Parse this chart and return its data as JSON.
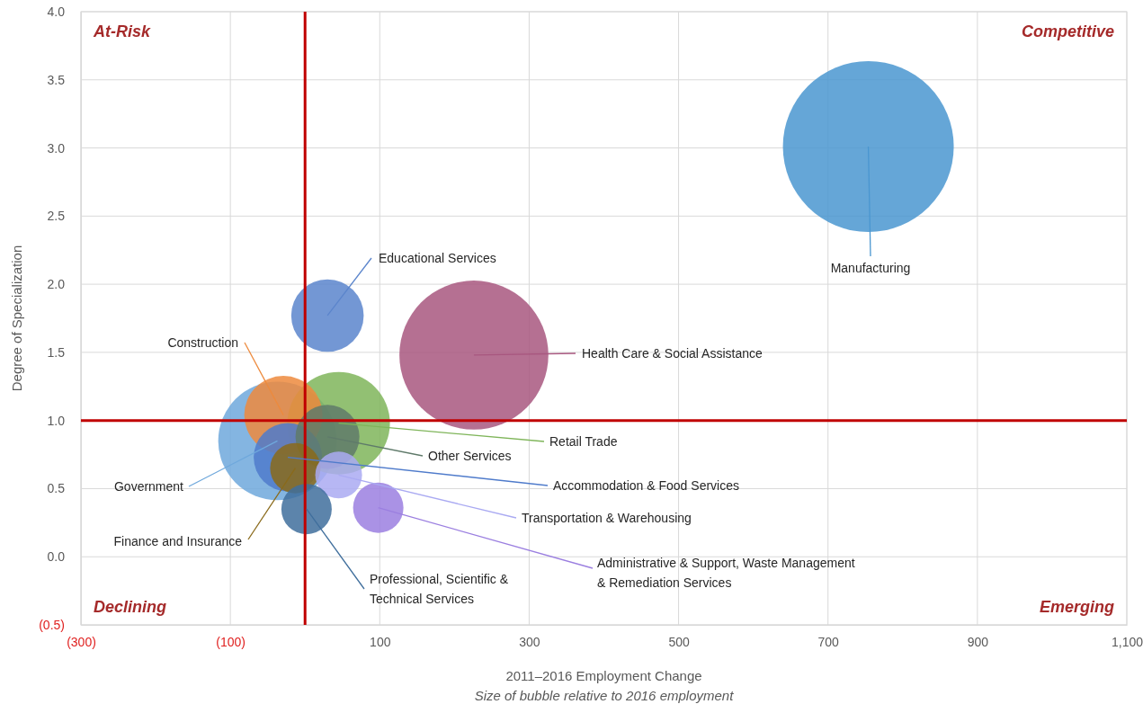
{
  "chart_data": {
    "type": "bubble",
    "xlabel": "2011–2016 Employment Change",
    "ylabel": "Degree of Specialization",
    "annotations": [
      "At-Risk",
      "Competitive",
      "Declining",
      "Emerging",
      "Size of bubble relative to 2016 employment"
    ],
    "xlim": [
      -300,
      1100
    ],
    "xticks": [
      {
        "value": -300,
        "label": "(300)"
      },
      {
        "value": -100,
        "label": "(100)"
      },
      100,
      300,
      500,
      700,
      900,
      {
        "value": 1100,
        "label": "1,100"
      }
    ],
    "ylim": [
      -0.5,
      4
    ],
    "yticks": [
      {
        "value": -0.5,
        "label": "(0.5)"
      },
      {
        "value": 0,
        "label": "0.0"
      },
      {
        "value": 0.5,
        "label": "0.5"
      },
      {
        "value": 1,
        "label": "1.0"
      },
      {
        "value": 1.5,
        "label": "1.5"
      },
      {
        "value": 2,
        "label": "2.0"
      },
      {
        "value": 2.5,
        "label": "2.5"
      },
      {
        "value": 3,
        "label": "3.0"
      },
      {
        "value": 3.5,
        "label": "3.5"
      },
      {
        "value": 4,
        "label": "4.0"
      }
    ],
    "grid": true,
    "ref_lines": [
      {
        "axis": "x",
        "value": 0,
        "color": "#c00000"
      },
      {
        "axis": "y",
        "value": 1,
        "color": "#c00000"
      }
    ],
    "series": [
      {
        "name": "Manufacturing",
        "color": "#4a96d0",
        "x": [
          754
        ],
        "values": [
          3.01
        ],
        "sizes": [
          1
        ]
      },
      {
        "name": "Health Care & Social Assistance",
        "color": "#a8577f",
        "x": [
          226
        ],
        "values": [
          1.48
        ],
        "sizes": [
          0.76
        ]
      },
      {
        "name": "Government",
        "color": "#6fa8dc",
        "x": [
          -37
        ],
        "values": [
          0.85
        ],
        "sizes": [
          0.48
        ]
      },
      {
        "name": "Retail Trade",
        "color": "#7fb55a",
        "x": [
          45
        ],
        "values": [
          0.98
        ],
        "sizes": [
          0.36
        ]
      },
      {
        "name": "Construction",
        "color": "#ed8a3d",
        "x": [
          -29
        ],
        "values": [
          1.04
        ],
        "sizes": [
          0.21
        ]
      },
      {
        "name": "Educational Services",
        "color": "#5b85cc",
        "x": [
          30
        ],
        "values": [
          1.77
        ],
        "sizes": [
          0.18
        ]
      },
      {
        "name": "Accommodation & Food Services",
        "color": "#4f7bcb",
        "x": [
          -23
        ],
        "values": [
          0.73
        ],
        "sizes": [
          0.16
        ]
      },
      {
        "name": "Other Services",
        "color": "#5f7a6a",
        "x": [
          30
        ],
        "values": [
          0.88
        ],
        "sizes": [
          0.14
        ]
      },
      {
        "name": "Finance and Insurance",
        "color": "#8a6a1a",
        "x": [
          -13
        ],
        "values": [
          0.65
        ],
        "sizes": [
          0.087
        ]
      },
      {
        "name": "Transportation & Warehousing",
        "color": "#aaaaf2",
        "x": [
          45
        ],
        "values": [
          0.6
        ],
        "sizes": [
          0.075
        ]
      },
      {
        "name": "Administrative & Support, Waste Management & Remediation Services",
        "color": "#9b7fe0",
        "x": [
          98
        ],
        "values": [
          0.36
        ],
        "sizes": [
          0.087
        ]
      },
      {
        "name": "Professional, Scientific & Technical Services",
        "color": "#3f6e9c",
        "x": [
          2
        ],
        "values": [
          0.35
        ],
        "sizes": [
          0.087
        ]
      }
    ]
  }
}
